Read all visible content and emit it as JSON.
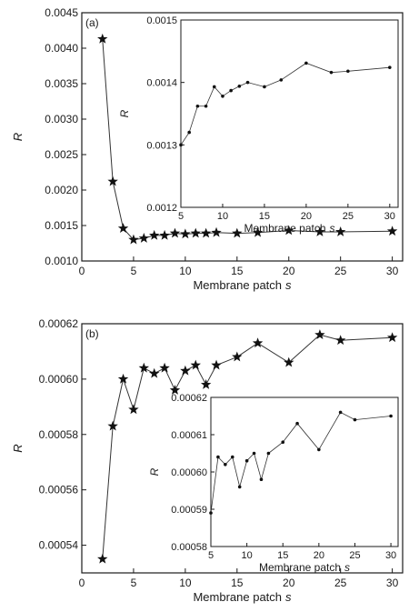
{
  "chart_data": [
    {
      "id": "panel-a-main",
      "type": "line",
      "panel_label": "(a)",
      "xlabel": "Membrane patch",
      "xlabel_var": "s",
      "ylabel": "R",
      "xlim": [
        0,
        31
      ],
      "ylim": [
        0.001,
        0.0045
      ],
      "xticks": [
        "0",
        "5",
        "10",
        "15",
        "20",
        "25",
        "30"
      ],
      "yticks": [
        "0.0010",
        "0.0015",
        "0.0020",
        "0.0025",
        "0.0030",
        "0.0035",
        "0.0040",
        "0.0045"
      ],
      "marker": "star",
      "series": [
        {
          "x": [
            2,
            3,
            4,
            5,
            6,
            7,
            8,
            9,
            10,
            11,
            12,
            13,
            15,
            17,
            20,
            23,
            25,
            30
          ],
          "y": [
            0.00413,
            0.00212,
            0.00146,
            0.0013,
            0.00132,
            0.00136,
            0.00136,
            0.00139,
            0.00138,
            0.00139,
            0.00139,
            0.0014,
            0.00139,
            0.0014,
            0.00143,
            0.00141,
            0.00141,
            0.00142
          ]
        }
      ]
    },
    {
      "id": "panel-a-inset",
      "type": "line",
      "xlabel": "Membrane patch",
      "xlabel_var": "s",
      "ylabel": "R",
      "xlim": [
        5,
        31
      ],
      "ylim": [
        0.0012,
        0.0015
      ],
      "xticks": [
        "5",
        "10",
        "15",
        "20",
        "25",
        "30"
      ],
      "yticks": [
        "0.0012",
        "0.0013",
        "0.0014",
        "0.0015"
      ],
      "marker": "dot",
      "series": [
        {
          "x": [
            5,
            6,
            7,
            8,
            9,
            10,
            11,
            12,
            13,
            15,
            17,
            20,
            23,
            25,
            30
          ],
          "y": [
            0.0013,
            0.00132,
            0.001362,
            0.001362,
            0.001393,
            0.001378,
            0.001387,
            0.001394,
            0.0014,
            0.001393,
            0.001404,
            0.001431,
            0.001416,
            0.001418,
            0.001424
          ]
        }
      ]
    },
    {
      "id": "panel-b-main",
      "type": "line",
      "panel_label": "(b)",
      "xlabel": "Membrane patch",
      "xlabel_var": "s",
      "ylabel": "R",
      "xlim": [
        0,
        31
      ],
      "ylim": [
        0.00053,
        0.00062
      ],
      "xticks": [
        "0",
        "5",
        "10",
        "15",
        "20",
        "25",
        "30"
      ],
      "yticks": [
        "0.00054",
        "0.00056",
        "0.00058",
        "0.00060",
        "0.00062"
      ],
      "marker": "star",
      "series": [
        {
          "x": [
            2,
            3,
            4,
            5,
            6,
            7,
            8,
            9,
            10,
            11,
            12,
            13,
            15,
            17,
            20,
            23,
            25,
            30
          ],
          "y": [
            0.000535,
            0.000583,
            0.0006,
            0.000589,
            0.000604,
            0.000602,
            0.000604,
            0.000596,
            0.000603,
            0.000605,
            0.000598,
            0.000605,
            0.000608,
            0.000613,
            0.000606,
            0.000616,
            0.000614,
            0.000615
          ]
        }
      ]
    },
    {
      "id": "panel-b-inset",
      "type": "line",
      "xlabel": "Membrane patch",
      "xlabel_var": "s",
      "ylabel": "R",
      "xlim": [
        5,
        31
      ],
      "ylim": [
        0.00058,
        0.00062
      ],
      "xticks": [
        "5",
        "10",
        "15",
        "20",
        "25",
        "30"
      ],
      "yticks": [
        "0.00058",
        "0.00059",
        "0.00060",
        "0.00061",
        "0.00062"
      ],
      "marker": "dot",
      "series": [
        {
          "x": [
            5,
            6,
            7,
            8,
            9,
            10,
            11,
            12,
            13,
            15,
            17,
            20,
            23,
            25,
            30
          ],
          "y": [
            0.000589,
            0.000604,
            0.000602,
            0.000604,
            0.000596,
            0.000603,
            0.000605,
            0.000598,
            0.000605,
            0.000608,
            0.000613,
            0.000606,
            0.000616,
            0.000614,
            0.000615
          ]
        }
      ]
    }
  ]
}
